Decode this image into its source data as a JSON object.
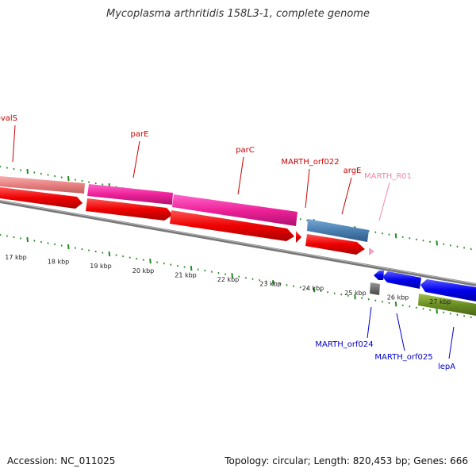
{
  "title": "Mycoplasma arthritidis 158L3-1, complete genome",
  "footer": {
    "accession_label": "Accession: ",
    "accession": "NC_011025",
    "topology_label": "Topology: ",
    "topology": "circular",
    "length_label": "; Length: ",
    "length": "820,453 bp",
    "genes_label": "; Genes: ",
    "genes": "666"
  },
  "scale_ticks": [
    "17 kbp",
    "18 kbp",
    "19 kbp",
    "20 kbp",
    "21 kbp",
    "22 kbp",
    "23 kbp",
    "24 kbp",
    "25 kbp",
    "26 kbp",
    "27 kbp"
  ],
  "forward_labels": [
    {
      "name": "oppF-valS",
      "color": "#cc0000"
    },
    {
      "name": "parE",
      "color": "#cc0000"
    },
    {
      "name": "parC",
      "color": "#cc0000"
    },
    {
      "name": "MARTH_orf022",
      "color": "#cc0000"
    },
    {
      "name": "argE",
      "color": "#cc0000"
    },
    {
      "name": "MARTH_R01",
      "color": "#ee88aa"
    }
  ],
  "reverse_labels": [
    {
      "name": "MARTH_orf024",
      "color": "#0000cc"
    },
    {
      "name": "MARTH_orf025",
      "color": "#0000cc"
    },
    {
      "name": "lepA",
      "color": "#0000cc"
    }
  ],
  "colors": {
    "backbone": "#888888",
    "tick": "#228b22",
    "cds": "#ee0000",
    "pink": "#ee2299",
    "salmon": "#e88080",
    "steel": "#4a7fb0",
    "blue": "#0000ee",
    "olive": "#6b8e23",
    "gray": "#666666"
  }
}
